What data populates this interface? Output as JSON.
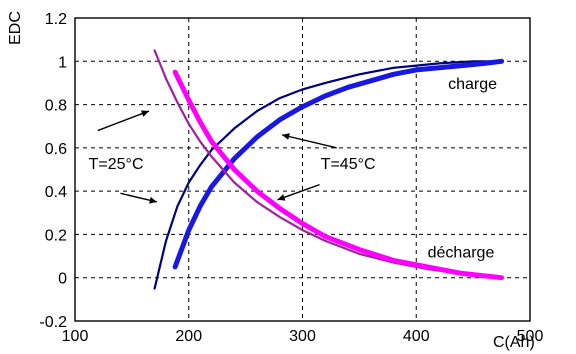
{
  "chart_data": {
    "type": "line",
    "xlabel": "C(Ah)",
    "ylabel": "EDC",
    "xlim": [
      100,
      500
    ],
    "ylim": [
      -0.2,
      1.2
    ],
    "xticks": [
      100,
      200,
      300,
      400,
      500
    ],
    "yticks": [
      -0.2,
      0,
      0.2,
      0.4,
      0.6,
      0.8,
      1,
      1.2
    ],
    "xtick_labels": [
      "100",
      "200",
      "300",
      "400",
      "500"
    ],
    "ytick_labels": [
      "-0.2",
      "0",
      "0.2",
      "0.4",
      "0.6",
      "0.8",
      "1",
      "1.2"
    ],
    "grid": true,
    "series": [
      {
        "name": "",
        "temperature": "T=25°C",
        "kind": "charge",
        "color": "#000080",
        "x": [
          170,
          180,
          190,
          200,
          210,
          220,
          240,
          260,
          280,
          300,
          320,
          350,
          380,
          400,
          420,
          450,
          475
        ],
        "y": [
          -0.05,
          0.17,
          0.33,
          0.44,
          0.52,
          0.59,
          0.69,
          0.77,
          0.83,
          0.87,
          0.9,
          0.94,
          0.97,
          0.98,
          0.99,
          1.0,
          1.0
        ]
      },
      {
        "name": "",
        "temperature": "T=45°C",
        "kind": "charge",
        "color": "#1818e0",
        "x": [
          188,
          200,
          210,
          220,
          240,
          260,
          280,
          300,
          320,
          340,
          360,
          380,
          400,
          420,
          440,
          460,
          475
        ],
        "y": [
          0.05,
          0.22,
          0.33,
          0.42,
          0.55,
          0.65,
          0.73,
          0.79,
          0.84,
          0.88,
          0.91,
          0.94,
          0.96,
          0.97,
          0.98,
          0.99,
          1.0
        ]
      },
      {
        "name": "",
        "temperature": "T=25°C",
        "kind": "decharge",
        "color": "#a020a0",
        "x": [
          170,
          180,
          190,
          200,
          210,
          220,
          240,
          260,
          280,
          300,
          320,
          350,
          380,
          410,
          440,
          475
        ],
        "y": [
          1.05,
          0.92,
          0.81,
          0.71,
          0.63,
          0.56,
          0.44,
          0.35,
          0.28,
          0.22,
          0.17,
          0.11,
          0.07,
          0.04,
          0.02,
          0.0
        ]
      },
      {
        "name": "",
        "temperature": "T=45°C",
        "kind": "decharge",
        "color": "#ff00ff",
        "x": [
          188,
          200,
          210,
          220,
          240,
          260,
          280,
          300,
          320,
          350,
          380,
          410,
          440,
          475
        ],
        "y": [
          0.95,
          0.82,
          0.72,
          0.63,
          0.5,
          0.4,
          0.32,
          0.25,
          0.19,
          0.13,
          0.08,
          0.05,
          0.02,
          0.0
        ]
      }
    ],
    "annotations": [
      {
        "text": "charge",
        "x": 428,
        "y": 0.9
      },
      {
        "text": "décharge",
        "x": 410,
        "y": 0.12
      },
      {
        "text": "T=25°C",
        "x": 112,
        "y": 0.53
      },
      {
        "text": "T=45°C",
        "x": 316,
        "y": 0.53
      }
    ],
    "arrows": [
      {
        "from": [
          120,
          0.68
        ],
        "to": [
          165,
          0.77
        ]
      },
      {
        "from": [
          140,
          0.39
        ],
        "to": [
          172,
          0.35
        ]
      },
      {
        "from": [
          330,
          0.6
        ],
        "to": [
          282,
          0.66
        ]
      },
      {
        "from": [
          315,
          0.43
        ],
        "to": [
          278,
          0.36
        ]
      }
    ]
  }
}
